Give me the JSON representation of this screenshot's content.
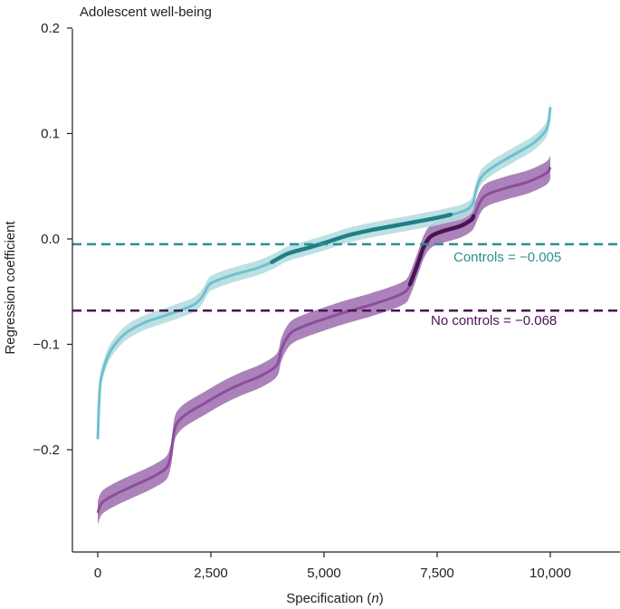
{
  "chart_data": {
    "type": "line",
    "title": "Adolescent well-being",
    "xlabel_main": "Specification (",
    "xlabel_italic": "n",
    "xlabel_end": ")",
    "ylabel": "Regression coefficient",
    "xlim": [
      -500,
      11500
    ],
    "ylim": [
      -0.3,
      0.2
    ],
    "xticks": [
      0,
      2500,
      5000,
      7500,
      10000
    ],
    "xtick_labels": [
      "0",
      "2,500",
      "5,000",
      "7,500",
      "10,000"
    ],
    "yticks": [
      0.2,
      0.1,
      0.0,
      -0.1,
      -0.2
    ],
    "ytick_labels": [
      "0.2",
      "0.1",
      "0.0",
      "−0.1",
      "−0.2"
    ],
    "colors": {
      "controls_light": "#6fc0cc",
      "controls_band": "#b6dde0",
      "controls_dark": "#1f7f86",
      "controls_ref": "#2a8f93",
      "nocontrols_light": "#8a4f99",
      "nocontrols_band": "#a77bb5",
      "nocontrols_dark": "#4a1355",
      "nocontrols_ref": "#4a1355"
    },
    "series": [
      {
        "name": "Controls",
        "band_halfwidth": 0.007,
        "significant_range": [
          3850,
          7800
        ],
        "x": [
          0,
          50,
          150,
          300,
          600,
          1000,
          1400,
          1800,
          2100,
          2250,
          2350,
          2450,
          2600,
          3000,
          3500,
          3850,
          4200,
          4600,
          5000,
          5500,
          6000,
          6500,
          7000,
          7500,
          7800,
          8000,
          8200,
          8300,
          8350,
          8450,
          8600,
          8800,
          9200,
          9600,
          9850,
          9950,
          10000
        ],
        "y": [
          -0.19,
          -0.14,
          -0.12,
          -0.105,
          -0.09,
          -0.08,
          -0.074,
          -0.068,
          -0.063,
          -0.058,
          -0.052,
          -0.044,
          -0.04,
          -0.034,
          -0.028,
          -0.022,
          -0.014,
          -0.009,
          -0.004,
          0.003,
          0.008,
          0.012,
          0.016,
          0.02,
          0.023,
          0.025,
          0.029,
          0.035,
          0.045,
          0.057,
          0.064,
          0.07,
          0.08,
          0.09,
          0.1,
          0.108,
          0.125
        ]
      },
      {
        "name": "No controls",
        "band_halfwidth": 0.011,
        "significant_range": [
          6900,
          8300
        ],
        "x": [
          0,
          100,
          400,
          800,
          1200,
          1500,
          1600,
          1650,
          1700,
          1800,
          2000,
          2400,
          2800,
          3200,
          3600,
          3950,
          4050,
          4150,
          4300,
          4600,
          5000,
          5500,
          6000,
          6500,
          6800,
          6900,
          7000,
          7100,
          7200,
          7350,
          7600,
          8000,
          8250,
          8350,
          8450,
          8600,
          9000,
          9500,
          9900,
          10000
        ],
        "y": [
          -0.26,
          -0.25,
          -0.242,
          -0.234,
          -0.226,
          -0.218,
          -0.208,
          -0.195,
          -0.18,
          -0.172,
          -0.165,
          -0.155,
          -0.145,
          -0.137,
          -0.13,
          -0.12,
          -0.106,
          -0.096,
          -0.088,
          -0.082,
          -0.076,
          -0.069,
          -0.063,
          -0.056,
          -0.05,
          -0.043,
          -0.032,
          -0.02,
          -0.008,
          0.002,
          0.007,
          0.012,
          0.018,
          0.025,
          0.035,
          0.042,
          0.048,
          0.054,
          0.062,
          0.068
        ]
      }
    ],
    "reference_lines": [
      {
        "name": "Controls",
        "value": -0.005,
        "label": "Controls = −0.005"
      },
      {
        "name": "No controls",
        "value": -0.068,
        "label": "No controls = −0.068"
      }
    ]
  }
}
